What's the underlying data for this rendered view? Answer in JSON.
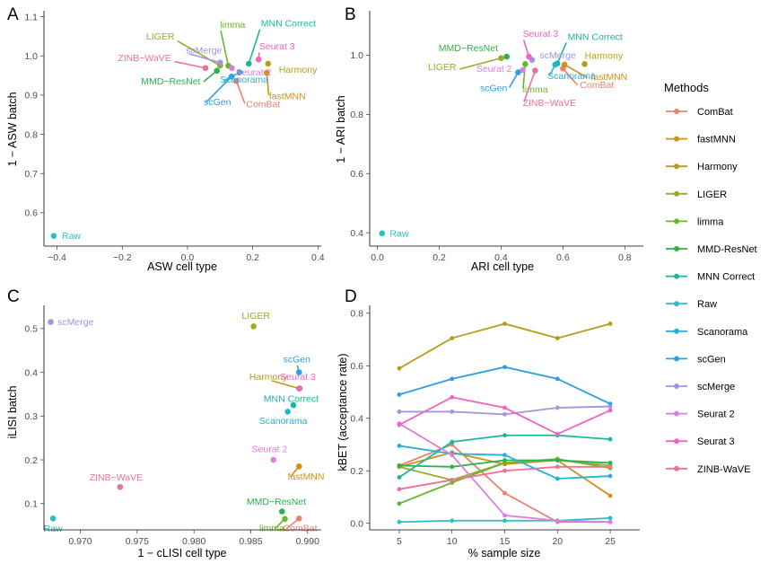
{
  "legend": {
    "title": "Methods"
  },
  "methods": [
    {
      "name": "ComBat",
      "color": "#E7826F"
    },
    {
      "name": "fastMNN",
      "color": "#D18F18"
    },
    {
      "name": "Harmony",
      "color": "#B69D1A"
    },
    {
      "name": "LIGER",
      "color": "#98AC2A"
    },
    {
      "name": "limma",
      "color": "#6AB631"
    },
    {
      "name": "MMD-ResNet",
      "color": "#2CB24B"
    },
    {
      "name": "MNN Correct",
      "color": "#1CB79B"
    },
    {
      "name": "Raw",
      "color": "#2ABFC4"
    },
    {
      "name": "Scanorama",
      "color": "#26B2D8"
    },
    {
      "name": "scGen",
      "color": "#2E9FDF"
    },
    {
      "name": "scMerge",
      "color": "#A195E0"
    },
    {
      "name": "Seurat 2",
      "color": "#DA7FDF"
    },
    {
      "name": "Seurat 3",
      "color": "#EE65C3"
    },
    {
      "name": "ZINB-WaVE",
      "color": "#EE7195"
    }
  ],
  "chart_data": [
    {
      "panel": "A",
      "type": "scatter",
      "xlabel": "ASW cell type",
      "ylabel": "1 − ASW batch",
      "xlim": [
        -0.44,
        0.41
      ],
      "ylim": [
        0.515,
        1.115
      ],
      "xticks": [
        -0.4,
        -0.2,
        0.0,
        0.2,
        0.4
      ],
      "xtick_labels": [
        "−0.4",
        "−0.2",
        "0.0",
        "0.2",
        "0.4"
      ],
      "yticks": [
        0.6,
        0.7,
        0.8,
        0.9,
        1.0,
        1.1
      ],
      "ytick_labels": [
        "0.6",
        "0.7",
        "0.8",
        "0.9",
        "1.0",
        "1.1"
      ],
      "points": [
        {
          "method": "ComBat",
          "x": 0.15,
          "y": 0.936,
          "label": "ComBat",
          "lx": 0.18,
          "ly": 0.877,
          "anchor": "start"
        },
        {
          "method": "fastMNN",
          "x": 0.243,
          "y": 0.957,
          "label": "fastMNN",
          "lx": 0.25,
          "ly": 0.898,
          "anchor": "start"
        },
        {
          "method": "Harmony",
          "x": 0.247,
          "y": 0.98,
          "label": "Harmony",
          "lx": 0.28,
          "ly": 0.965,
          "anchor": "start"
        },
        {
          "method": "LIGER",
          "x": 0.1,
          "y": 0.975,
          "label": "LIGER",
          "lx": -0.04,
          "ly": 1.05,
          "anchor": "end"
        },
        {
          "method": "limma",
          "x": 0.125,
          "y": 0.975,
          "label": "limma",
          "lx": 0.1,
          "ly": 1.08,
          "anchor": "start"
        },
        {
          "method": "MMD-ResNet",
          "x": 0.09,
          "y": 0.962,
          "label": "MMD−ResNet",
          "lx": 0.04,
          "ly": 0.936,
          "anchor": "end"
        },
        {
          "method": "MNN Correct",
          "x": 0.188,
          "y": 0.98,
          "label": "MNN Correct",
          "lx": 0.225,
          "ly": 1.083,
          "anchor": "start"
        },
        {
          "method": "Raw",
          "x": -0.41,
          "y": 0.541,
          "label": "Raw",
          "lx": -0.385,
          "ly": 0.541,
          "anchor": "start"
        },
        {
          "method": "Scanorama",
          "x": 0.16,
          "y": 0.958,
          "label": "Scanorama",
          "lx": 0.1,
          "ly": 0.94,
          "anchor": "start"
        },
        {
          "method": "scGen",
          "x": 0.135,
          "y": 0.947,
          "label": "scGen",
          "lx": 0.05,
          "ly": 0.883,
          "anchor": "start"
        },
        {
          "method": "scMerge",
          "x": 0.1,
          "y": 0.983,
          "label": "scMerge",
          "lx": -0.005,
          "ly": 1.015,
          "anchor": "start"
        },
        {
          "method": "Seurat 2",
          "x": 0.136,
          "y": 0.969,
          "label": "Seurat 2",
          "lx": 0.148,
          "ly": 0.958,
          "anchor": "start"
        },
        {
          "method": "Seurat 3",
          "x": 0.218,
          "y": 0.991,
          "label": "Seurat 3",
          "lx": 0.22,
          "ly": 1.025,
          "anchor": "start"
        },
        {
          "method": "ZINB-WaVE",
          "x": 0.055,
          "y": 0.969,
          "label": "ZINB−WaVE",
          "lx": -0.05,
          "ly": 0.995,
          "anchor": "end"
        }
      ]
    },
    {
      "panel": "B",
      "type": "scatter",
      "xlabel": "ARI cell type",
      "ylabel": "1 − ARI batch",
      "xlim": [
        -0.025,
        0.86
      ],
      "ylim": [
        0.355,
        1.15
      ],
      "xticks": [
        0.0,
        0.2,
        0.4,
        0.6,
        0.8
      ],
      "xtick_labels": [
        "0.0",
        "0.2",
        "0.4",
        "0.6",
        "0.8"
      ],
      "yticks": [
        0.4,
        0.6,
        0.8,
        1.0
      ],
      "ytick_labels": [
        "0.4",
        "0.6",
        "0.8",
        "1.0"
      ],
      "points": [
        {
          "method": "ComBat",
          "x": 0.6,
          "y": 0.955,
          "label": "ComBat",
          "lx": 0.655,
          "ly": 0.9,
          "anchor": "start"
        },
        {
          "method": "fastMNN",
          "x": 0.605,
          "y": 0.968,
          "label": "fastMNN",
          "lx": 0.69,
          "ly": 0.928,
          "anchor": "start"
        },
        {
          "method": "Harmony",
          "x": 0.67,
          "y": 0.97,
          "label": "Harmony",
          "lx": 0.67,
          "ly": 0.998,
          "anchor": "start"
        },
        {
          "method": "LIGER",
          "x": 0.4,
          "y": 0.99,
          "label": "LIGER",
          "lx": 0.255,
          "ly": 0.96,
          "anchor": "end"
        },
        {
          "method": "limma",
          "x": 0.478,
          "y": 0.97,
          "label": "limma",
          "lx": 0.47,
          "ly": 0.885,
          "anchor": "start"
        },
        {
          "method": "MMD-ResNet",
          "x": 0.418,
          "y": 0.995,
          "label": "MMD−ResNet",
          "lx": 0.39,
          "ly": 1.025,
          "anchor": "end"
        },
        {
          "method": "MNN Correct",
          "x": 0.582,
          "y": 0.972,
          "label": "MNN Correct",
          "lx": 0.615,
          "ly": 1.063,
          "anchor": "start"
        },
        {
          "method": "Raw",
          "x": 0.015,
          "y": 0.398,
          "label": "Raw",
          "lx": 0.04,
          "ly": 0.398,
          "anchor": "start"
        },
        {
          "method": "Scanorama",
          "x": 0.575,
          "y": 0.968,
          "label": "Scanorama",
          "lx": 0.55,
          "ly": 0.93,
          "anchor": "start"
        },
        {
          "method": "scGen",
          "x": 0.455,
          "y": 0.942,
          "label": "scGen",
          "lx": 0.42,
          "ly": 0.89,
          "anchor": "end"
        },
        {
          "method": "scMerge",
          "x": 0.5,
          "y": 0.984,
          "label": "scMerge",
          "lx": 0.525,
          "ly": 1.0,
          "anchor": "start"
        },
        {
          "method": "Seurat 2",
          "x": 0.47,
          "y": 0.95,
          "label": "Seurat 2",
          "lx": 0.435,
          "ly": 0.955,
          "anchor": "end"
        },
        {
          "method": "Seurat 3",
          "x": 0.49,
          "y": 0.995,
          "label": "Seurat 3",
          "lx": 0.47,
          "ly": 1.073,
          "anchor": "start"
        },
        {
          "method": "ZINB-WaVE",
          "x": 0.51,
          "y": 0.948,
          "label": "ZINB−WaVE",
          "lx": 0.47,
          "ly": 0.84,
          "anchor": "start"
        }
      ]
    },
    {
      "panel": "C",
      "type": "scatter",
      "xlabel": "1 − cLISI cell type",
      "ylabel": "iLISI batch",
      "xlim": [
        0.9668,
        0.9912
      ],
      "ylim": [
        0.04,
        0.553
      ],
      "xticks": [
        0.97,
        0.975,
        0.98,
        0.985,
        0.99
      ],
      "xtick_labels": [
        "0.970",
        "0.975",
        "0.980",
        "0.985",
        "0.990"
      ],
      "yticks": [
        0.1,
        0.2,
        0.3,
        0.4,
        0.5
      ],
      "ytick_labels": [
        "0.1",
        "0.2",
        "0.3",
        "0.4",
        "0.5"
      ],
      "points": [
        {
          "method": "ComBat",
          "x": 0.98925,
          "y": 0.066,
          "label": "ComBat",
          "lx": 0.98785,
          "ly": 0.044,
          "anchor": "start"
        },
        {
          "method": "fastMNN",
          "x": 0.98925,
          "y": 0.185,
          "label": "fastMNN",
          "lx": 0.98825,
          "ly": 0.162,
          "anchor": "start"
        },
        {
          "method": "Harmony",
          "x": 0.98925,
          "y": 0.363,
          "label": "Harmony",
          "lx": 0.98655,
          "ly": 0.39,
          "anchor": "middle"
        },
        {
          "method": "LIGER",
          "x": 0.98525,
          "y": 0.505,
          "label": "LIGER",
          "lx": 0.98545,
          "ly": 0.53,
          "anchor": "middle"
        },
        {
          "method": "limma",
          "x": 0.988,
          "y": 0.065,
          "label": "limma",
          "lx": 0.98685,
          "ly": 0.044,
          "anchor": "middle"
        },
        {
          "method": "MMD-ResNet",
          "x": 0.98775,
          "y": 0.082,
          "label": "MMD−ResNet",
          "lx": 0.98725,
          "ly": 0.105,
          "anchor": "middle"
        },
        {
          "method": "MNN Correct",
          "x": 0.98875,
          "y": 0.325,
          "label": "MNN Correct",
          "lx": 0.98855,
          "ly": 0.34,
          "anchor": "middle"
        },
        {
          "method": "Raw",
          "x": 0.9676,
          "y": 0.066,
          "label": "Raw",
          "lx": 0.9676,
          "ly": 0.043,
          "anchor": "middle"
        },
        {
          "method": "Scanorama",
          "x": 0.98825,
          "y": 0.31,
          "label": "Scanorama",
          "lx": 0.98785,
          "ly": 0.29,
          "anchor": "middle"
        },
        {
          "method": "scGen",
          "x": 0.98925,
          "y": 0.4,
          "label": "scGen",
          "lx": 0.98905,
          "ly": 0.43,
          "anchor": "middle"
        },
        {
          "method": "scMerge",
          "x": 0.9674,
          "y": 0.515,
          "label": "scMerge",
          "lx": 0.968,
          "ly": 0.515,
          "anchor": "start"
        },
        {
          "method": "Seurat 2",
          "x": 0.987,
          "y": 0.2,
          "label": "Seurat 2",
          "lx": 0.98665,
          "ly": 0.225,
          "anchor": "middle"
        },
        {
          "method": "Seurat 3",
          "x": 0.9893,
          "y": 0.363,
          "label": "Seurat 3",
          "lx": 0.98915,
          "ly": 0.39,
          "anchor": "middle"
        },
        {
          "method": "ZINB-WaVE",
          "x": 0.9735,
          "y": 0.138,
          "label": "ZINB−WaVE",
          "lx": 0.97315,
          "ly": 0.16,
          "anchor": "middle"
        }
      ]
    },
    {
      "panel": "D",
      "type": "line",
      "xlabel": "% sample size",
      "ylabel": "kBET (acceptance rate)",
      "x": [
        5,
        10,
        15,
        20,
        25
      ],
      "xlim": [
        2.2,
        27.8
      ],
      "ylim": [
        -0.025,
        0.83
      ],
      "xticks": [
        5,
        10,
        15,
        20,
        25
      ],
      "xtick_labels": [
        "5",
        "10",
        "15",
        "20",
        "25"
      ],
      "yticks": [
        0.0,
        0.2,
        0.4,
        0.6,
        0.8
      ],
      "ytick_labels": [
        "0.0",
        "0.2",
        "0.4",
        "0.6",
        "0.8"
      ],
      "series": [
        {
          "name": "ComBat",
          "values": [
            0.22,
            0.3,
            0.115,
            0.005,
            0.005
          ]
        },
        {
          "name": "fastMNN",
          "values": [
            0.215,
            0.27,
            0.225,
            0.24,
            0.105
          ]
        },
        {
          "name": "Harmony",
          "values": [
            0.59,
            0.705,
            0.76,
            0.705,
            0.76
          ]
        },
        {
          "name": "LIGER",
          "values": [
            0.215,
            0.165,
            0.23,
            0.24,
            0.22
          ]
        },
        {
          "name": "limma",
          "values": [
            0.075,
            0.155,
            0.23,
            0.245,
            0.21
          ]
        },
        {
          "name": "MMD-ResNet",
          "values": [
            0.22,
            0.215,
            0.24,
            0.24,
            0.23
          ]
        },
        {
          "name": "MNN Correct",
          "values": [
            0.175,
            0.31,
            0.335,
            0.335,
            0.32
          ]
        },
        {
          "name": "Raw",
          "values": [
            0.005,
            0.01,
            0.01,
            0.01,
            0.02
          ]
        },
        {
          "name": "Scanorama",
          "values": [
            0.295,
            0.265,
            0.26,
            0.17,
            0.18
          ]
        },
        {
          "name": "scGen",
          "values": [
            0.49,
            0.55,
            0.595,
            0.55,
            0.455
          ]
        },
        {
          "name": "scMerge",
          "values": [
            0.425,
            0.425,
            0.415,
            0.44,
            0.445
          ]
        },
        {
          "name": "Seurat 2",
          "values": [
            0.38,
            0.26,
            0.03,
            0.01,
            0.005
          ]
        },
        {
          "name": "Seurat 3",
          "values": [
            0.375,
            0.48,
            0.44,
            0.34,
            0.43
          ]
        },
        {
          "name": "ZINB-WaVE",
          "values": [
            0.13,
            0.165,
            0.2,
            0.215,
            0.215
          ]
        }
      ]
    }
  ]
}
